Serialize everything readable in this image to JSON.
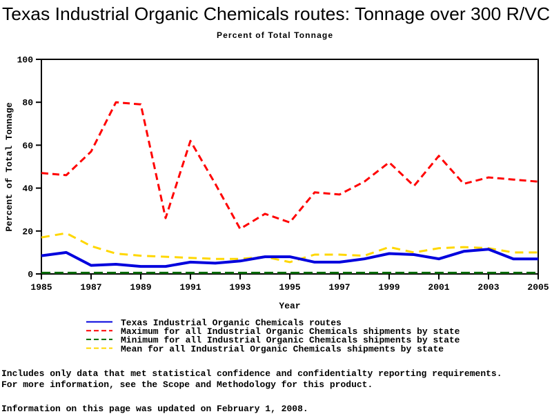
{
  "title": "Texas Industrial Organic Chemicals routes: Tonnage over 300 R/VC",
  "subtitle": "Percent of Total Tonnage",
  "colors": {
    "texas_line": "#0000DD",
    "maximum_line": "#FF0000",
    "minimum_line": "#006B00",
    "mean_line": "#FFD700",
    "axis": "#000000",
    "background": "#FFFFFF"
  },
  "x_axis": {
    "label": "Year",
    "tick_labels": [
      "1985",
      "1987",
      "1989",
      "1991",
      "1993",
      "1995",
      "1997",
      "1999",
      "2001",
      "2003",
      "2005"
    ]
  },
  "y_axis": {
    "label": "Percent of Total Tonnage",
    "tick_labels": [
      "0",
      "20",
      "40",
      "60",
      "80",
      "100"
    ]
  },
  "legend": {
    "items": [
      {
        "label": "Texas Industrial Organic Chemicals routes",
        "color": "#0000DD",
        "style": "solid"
      },
      {
        "label": "Maximum for all Industrial Organic Chemicals shipments by state",
        "color": "#FF0000",
        "style": "dashed"
      },
      {
        "label": "Minimum for all Industrial Organic Chemicals shipments by state",
        "color": "#006B00",
        "style": "dashed"
      },
      {
        "label": "Mean for all Industrial Organic Chemicals shipments by state",
        "color": "#FFD700",
        "style": "dashed"
      }
    ]
  },
  "footnotes": [
    "Includes only data that met statistical confidence and confidentialty reporting requirements.",
    "For more information, see the Scope and Methodology for this product.",
    "Information on this page was updated on February 1, 2008."
  ],
  "chart_data": {
    "type": "line",
    "title": "Texas Industrial Organic Chemicals routes: Tonnage over 300 R/VC",
    "subtitle": "Percent of Total Tonnage",
    "xlabel": "Year",
    "ylabel": "Percent of Total Tonnage",
    "xlim": [
      1985,
      2005
    ],
    "ylim": [
      0,
      100
    ],
    "grid": false,
    "legend_position": "bottom",
    "x": [
      1985,
      1986,
      1987,
      1988,
      1989,
      1990,
      1991,
      1992,
      1993,
      1994,
      1995,
      1996,
      1997,
      1998,
      1999,
      2000,
      2001,
      2002,
      2003,
      2004,
      2005
    ],
    "series": [
      {
        "name": "Texas Industrial Organic Chemicals routes",
        "color": "#0000DD",
        "style": "solid",
        "values": [
          8.5,
          10,
          4,
          4.5,
          3.5,
          3.5,
          5.5,
          5,
          6,
          8,
          8,
          5.5,
          5.5,
          7,
          9.5,
          9,
          7,
          10.5,
          11.5,
          7,
          7
        ]
      },
      {
        "name": "Maximum for all Industrial Organic Chemicals shipments by state",
        "color": "#FF0000",
        "style": "dashed",
        "values": [
          47,
          46,
          57,
          80,
          79,
          26,
          62,
          42,
          21,
          28,
          24,
          38,
          37,
          43,
          52,
          41,
          55,
          42,
          45,
          44,
          43
        ]
      },
      {
        "name": "Minimum for all Industrial Organic Chemicals shipments by state",
        "color": "#006B00",
        "style": "dashed",
        "values": [
          0.5,
          0.5,
          0.5,
          0.5,
          0.5,
          0.5,
          0.5,
          0.5,
          0.5,
          0.5,
          0.5,
          0.5,
          0.5,
          0.5,
          0.5,
          0.5,
          0.5,
          0.5,
          0.5,
          0.5,
          0.5
        ]
      },
      {
        "name": "Mean for all Industrial Organic Chemicals shipments by state",
        "color": "#FFD700",
        "style": "dashed",
        "values": [
          17,
          19,
          13,
          9.5,
          8.5,
          8,
          7.5,
          7,
          7,
          8,
          5.5,
          9,
          9,
          8.5,
          12.5,
          10,
          12,
          12.5,
          12,
          10,
          10
        ]
      }
    ]
  }
}
